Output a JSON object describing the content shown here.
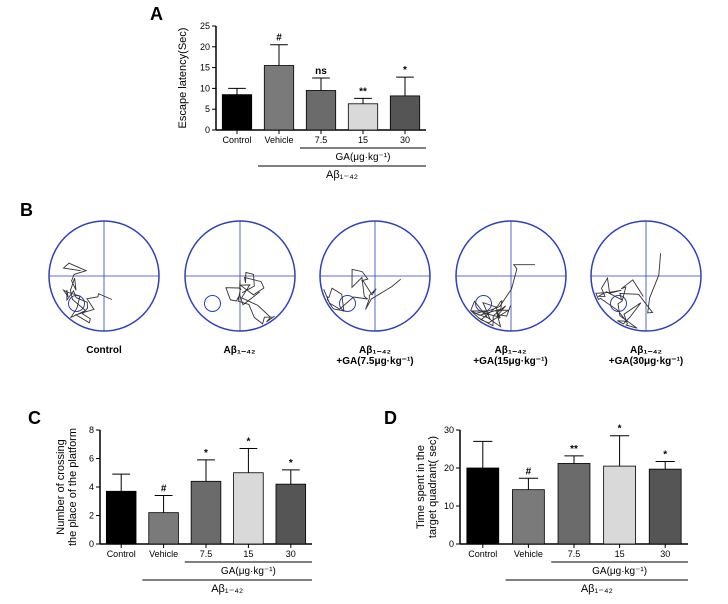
{
  "figure": {
    "background_color": "#ffffff",
    "font_family": "Arial, Helvetica, sans-serif",
    "panel_letter_fontsize": 18,
    "panel_letter_fontweight": "bold"
  },
  "palette": {
    "black": "#000000",
    "midgrey": "#7a7a7a",
    "grey": "#6b6b6b",
    "lightgrey": "#d9d9d9",
    "darkgrey": "#555555",
    "trace_blue": "#2e3fbf"
  },
  "panelA": {
    "letter": "A",
    "type": "bar",
    "ylabel": "Escape latency(Sec)",
    "categories": [
      "Control",
      "Vehicle",
      "7.5",
      "15",
      "30"
    ],
    "values": [
      8.5,
      15.5,
      9.5,
      6.3,
      8.2
    ],
    "errors": [
      1.5,
      5.0,
      3.0,
      1.3,
      4.5
    ],
    "significance": [
      "",
      "#",
      "ns",
      "**",
      "*"
    ],
    "bar_colors": [
      "#000000",
      "#7a7a7a",
      "#6b6b6b",
      "#d9d9d9",
      "#555555"
    ],
    "ylim": [
      0,
      25
    ],
    "ytick_step": 5,
    "bar_width": 0.7,
    "group_label": "GA(μg·kg⁻¹)",
    "group_label2": "Aβ₁₋₄₂",
    "label_fontsize": 11,
    "tick_fontsize": 9,
    "sig_fontsize": 10
  },
  "panelB": {
    "letter": "B",
    "type": "trace-circles",
    "trace_color": "#2e3fbf",
    "circle_stroke": "#2e3fbf",
    "labels": [
      "Control",
      "Aβ₁₋₄₂",
      "Aβ₁₋₄₂\n+GA(7.5μg·kg⁻¹)",
      "Aβ₁₋₄₂\n+GA(15μg·kg⁻¹)",
      "Aβ₁₋₄₂\n+GA(30μg·kg⁻¹)"
    ],
    "platform_quadrant": "SW",
    "label_fontsize": 10,
    "label_fontweight": "bold"
  },
  "panelC": {
    "letter": "C",
    "type": "bar",
    "ylabel": "Number of crossing\nthe place of the platform",
    "categories": [
      "Control",
      "Vehicle",
      "7.5",
      "15",
      "30"
    ],
    "values": [
      3.7,
      2.2,
      4.4,
      5.0,
      4.2
    ],
    "errors": [
      1.2,
      1.2,
      1.5,
      1.7,
      1.0
    ],
    "significance": [
      "",
      "#",
      "*",
      "*",
      "*"
    ],
    "bar_colors": [
      "#000000",
      "#7a7a7a",
      "#6b6b6b",
      "#d9d9d9",
      "#555555"
    ],
    "ylim": [
      0,
      8
    ],
    "ytick_step": 2,
    "bar_width": 0.7,
    "group_label": "GA(μg·kg⁻¹)",
    "group_label2": "Aβ₁₋₄₂",
    "label_fontsize": 11,
    "tick_fontsize": 9,
    "sig_fontsize": 10
  },
  "panelD": {
    "letter": "D",
    "type": "bar",
    "ylabel": "Time spent in the\ntarget quadrant( sec)",
    "categories": [
      "Control",
      "Vehicle",
      "7.5",
      "15",
      "30"
    ],
    "values": [
      20.0,
      14.3,
      21.2,
      20.5,
      19.7
    ],
    "errors": [
      7.0,
      3.0,
      2.0,
      8.0,
      2.0
    ],
    "significance": [
      "",
      "#",
      "**",
      "*",
      "*"
    ],
    "bar_colors": [
      "#000000",
      "#7a7a7a",
      "#6b6b6b",
      "#d9d9d9",
      "#555555"
    ],
    "ylim": [
      0,
      30
    ],
    "ytick_step": 10,
    "bar_width": 0.7,
    "group_label": "GA(μg·kg⁻¹)",
    "group_label2": "Aβ₁₋₄₂",
    "label_fontsize": 11,
    "tick_fontsize": 9,
    "sig_fontsize": 10
  }
}
